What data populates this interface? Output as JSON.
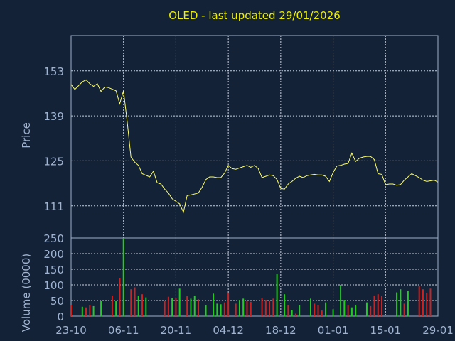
{
  "chart_data": [
    {
      "type": "line",
      "title": "OLED - last updated 29/01/2026",
      "ylabel": "Price",
      "ylim": [
        101,
        164
      ],
      "yticks": [
        111,
        125,
        139,
        153
      ],
      "xticks": [
        {
          "date": "2025-10-23",
          "label": "23-10"
        },
        {
          "date": "2025-11-06",
          "label": "06-11"
        },
        {
          "date": "2025-11-20",
          "label": "20-11"
        },
        {
          "date": "2025-12-04",
          "label": "04-12"
        },
        {
          "date": "2025-12-18",
          "label": "18-12"
        },
        {
          "date": "2026-01-01",
          "label": "01-01"
        },
        {
          "date": "2026-01-15",
          "label": "15-01"
        },
        {
          "date": "2026-01-29",
          "label": "29-01"
        }
      ],
      "grid": true,
      "line_color": "#ffff66",
      "series": [
        {
          "values": [
            [
              "2025-10-23",
              148.8
            ],
            [
              "2025-10-24",
              147.2
            ],
            [
              "2025-10-26",
              149.6
            ],
            [
              "2025-10-27",
              150.2
            ],
            [
              "2025-10-28",
              149.0
            ],
            [
              "2025-10-29",
              148.2
            ],
            [
              "2025-10-30",
              149.0
            ],
            [
              "2025-10-31",
              146.6
            ],
            [
              "2025-11-01",
              148.0
            ],
            [
              "2025-11-02",
              147.8
            ],
            [
              "2025-11-04",
              146.8
            ],
            [
              "2025-11-05",
              142.8
            ],
            [
              "2025-11-06",
              146.8
            ],
            [
              "2025-11-07",
              137.0
            ],
            [
              "2025-11-08",
              126.2
            ],
            [
              "2025-11-09",
              124.6
            ],
            [
              "2025-11-10",
              123.6
            ],
            [
              "2025-11-11",
              121.0
            ],
            [
              "2025-11-13",
              120.0
            ],
            [
              "2025-11-14",
              121.8
            ],
            [
              "2025-11-15",
              118.2
            ],
            [
              "2025-11-16",
              117.8
            ],
            [
              "2025-11-17",
              116.2
            ],
            [
              "2025-11-18",
              115.0
            ],
            [
              "2025-11-19",
              113.2
            ],
            [
              "2025-11-20",
              112.4
            ],
            [
              "2025-11-21",
              111.6
            ],
            [
              "2025-11-22",
              109.0
            ],
            [
              "2025-11-23",
              114.2
            ],
            [
              "2025-11-24",
              114.4
            ],
            [
              "2025-11-26",
              115.0
            ],
            [
              "2025-11-27",
              116.8
            ],
            [
              "2025-11-28",
              119.2
            ],
            [
              "2025-11-29",
              120.0
            ],
            [
              "2025-11-30",
              120.0
            ],
            [
              "2025-12-01",
              119.8
            ],
            [
              "2025-12-02",
              119.8
            ],
            [
              "2025-12-03",
              121.2
            ],
            [
              "2025-12-04",
              123.6
            ],
            [
              "2025-12-05",
              122.6
            ],
            [
              "2025-12-06",
              122.4
            ],
            [
              "2025-12-07",
              122.8
            ],
            [
              "2025-12-08",
              123.2
            ],
            [
              "2025-12-09",
              123.6
            ],
            [
              "2025-12-10",
              123.0
            ],
            [
              "2025-12-11",
              123.6
            ],
            [
              "2025-12-12",
              122.6
            ],
            [
              "2025-12-13",
              119.8
            ],
            [
              "2025-12-15",
              120.6
            ],
            [
              "2025-12-16",
              120.4
            ],
            [
              "2025-12-17",
              119.2
            ],
            [
              "2025-12-18",
              116.4
            ],
            [
              "2025-12-19",
              116.2
            ],
            [
              "2025-12-20",
              117.8
            ],
            [
              "2025-12-21",
              118.6
            ],
            [
              "2025-12-22",
              119.6
            ],
            [
              "2025-12-23",
              120.2
            ],
            [
              "2025-12-24",
              119.8
            ],
            [
              "2025-12-25",
              120.4
            ],
            [
              "2025-12-26",
              120.6
            ],
            [
              "2025-12-27",
              120.8
            ],
            [
              "2025-12-28",
              120.6
            ],
            [
              "2025-12-29",
              120.6
            ],
            [
              "2025-12-30",
              120.2
            ],
            [
              "2025-12-31",
              118.6
            ],
            [
              "2026-01-01",
              121.4
            ],
            [
              "2026-01-02",
              123.4
            ],
            [
              "2026-01-03",
              123.6
            ],
            [
              "2026-01-04",
              124.0
            ],
            [
              "2026-01-05",
              124.2
            ],
            [
              "2026-01-06",
              127.4
            ],
            [
              "2026-01-07",
              124.8
            ],
            [
              "2026-01-08",
              125.8
            ],
            [
              "2026-01-09",
              126.2
            ],
            [
              "2026-01-10",
              126.4
            ],
            [
              "2026-01-11",
              126.4
            ],
            [
              "2026-01-12",
              125.4
            ],
            [
              "2026-01-13",
              121.0
            ],
            [
              "2026-01-14",
              120.8
            ],
            [
              "2026-01-15",
              117.6
            ],
            [
              "2026-01-16",
              117.8
            ],
            [
              "2026-01-17",
              117.8
            ],
            [
              "2026-01-18",
              117.4
            ],
            [
              "2026-01-19",
              117.6
            ],
            [
              "2026-01-20",
              119.0
            ],
            [
              "2026-01-21",
              120.0
            ],
            [
              "2026-01-22",
              121.0
            ],
            [
              "2026-01-23",
              120.4
            ],
            [
              "2026-01-24",
              119.8
            ],
            [
              "2026-01-25",
              119.0
            ],
            [
              "2026-01-26",
              118.6
            ],
            [
              "2026-01-27",
              118.8
            ],
            [
              "2026-01-28",
              119.0
            ],
            [
              "2026-01-29",
              118.4
            ]
          ]
        }
      ]
    },
    {
      "type": "bar",
      "ylabel": "Volume (0000)",
      "ylim": [
        0,
        250
      ],
      "yticks": [
        0,
        50,
        100,
        150,
        200,
        250
      ],
      "grid": true,
      "up_color": "#22cc22",
      "down_color": "#cc2222",
      "series": [
        {
          "values": [
            [
              "2025-10-23",
              36,
              "down"
            ],
            [
              "2025-10-26",
              30,
              "up"
            ],
            [
              "2025-10-27",
              28,
              "down"
            ],
            [
              "2025-10-28",
              34,
              "down"
            ],
            [
              "2025-10-29",
              32,
              "up"
            ],
            [
              "2025-10-31",
              50,
              "up"
            ],
            [
              "2025-11-03",
              66,
              "down"
            ],
            [
              "2025-11-04",
              50,
              "up"
            ],
            [
              "2025-11-05",
              122,
              "down"
            ],
            [
              "2025-11-06",
              250,
              "up"
            ],
            [
              "2025-11-08",
              86,
              "down"
            ],
            [
              "2025-11-09",
              92,
              "down"
            ],
            [
              "2025-11-10",
              66,
              "up"
            ],
            [
              "2025-11-11",
              70,
              "down"
            ],
            [
              "2025-11-12",
              60,
              "up"
            ],
            [
              "2025-11-17",
              50,
              "down"
            ],
            [
              "2025-11-18",
              62,
              "down"
            ],
            [
              "2025-11-19",
              58,
              "up"
            ],
            [
              "2025-11-20",
              58,
              "down"
            ],
            [
              "2025-11-21",
              88,
              "up"
            ],
            [
              "2025-11-23",
              64,
              "down"
            ],
            [
              "2025-11-24",
              56,
              "up"
            ],
            [
              "2025-11-25",
              66,
              "up"
            ],
            [
              "2025-11-26",
              54,
              "down"
            ],
            [
              "2025-11-28",
              34,
              "up"
            ],
            [
              "2025-11-30",
              72,
              "up"
            ],
            [
              "2025-12-01",
              40,
              "up"
            ],
            [
              "2025-12-02",
              38,
              "up"
            ],
            [
              "2025-12-03",
              44,
              "down"
            ],
            [
              "2025-12-04",
              74,
              "down"
            ],
            [
              "2025-12-06",
              40,
              "down"
            ],
            [
              "2025-12-07",
              52,
              "up"
            ],
            [
              "2025-12-08",
              56,
              "up"
            ],
            [
              "2025-12-09",
              48,
              "down"
            ],
            [
              "2025-12-10",
              46,
              "down"
            ],
            [
              "2025-12-13",
              58,
              "down"
            ],
            [
              "2025-12-14",
              52,
              "down"
            ],
            [
              "2025-12-15",
              50,
              "down"
            ],
            [
              "2025-12-16",
              56,
              "down"
            ],
            [
              "2025-12-17",
              134,
              "up"
            ],
            [
              "2025-12-19",
              70,
              "up"
            ],
            [
              "2025-12-20",
              34,
              "down"
            ],
            [
              "2025-12-21",
              20,
              "up"
            ],
            [
              "2025-12-22",
              8,
              "down"
            ],
            [
              "2025-12-23",
              36,
              "up"
            ],
            [
              "2025-12-26",
              56,
              "up"
            ],
            [
              "2025-12-27",
              40,
              "down"
            ],
            [
              "2025-12-28",
              36,
              "down"
            ],
            [
              "2025-12-29",
              18,
              "down"
            ],
            [
              "2025-12-30",
              44,
              "up"
            ],
            [
              "2026-01-01",
              22,
              "up"
            ],
            [
              "2026-01-03",
              100,
              "up"
            ],
            [
              "2026-01-04",
              52,
              "up"
            ],
            [
              "2026-01-05",
              34,
              "down"
            ],
            [
              "2026-01-06",
              28,
              "up"
            ],
            [
              "2026-01-07",
              34,
              "up"
            ],
            [
              "2026-01-10",
              44,
              "up"
            ],
            [
              "2026-01-11",
              32,
              "down"
            ],
            [
              "2026-01-12",
              66,
              "down"
            ],
            [
              "2026-01-13",
              70,
              "down"
            ],
            [
              "2026-01-14",
              64,
              "down"
            ],
            [
              "2026-01-18",
              76,
              "up"
            ],
            [
              "2026-01-19",
              86,
              "up"
            ],
            [
              "2026-01-20",
              40,
              "down"
            ],
            [
              "2026-01-21",
              80,
              "up"
            ],
            [
              "2026-01-24",
              96,
              "down"
            ],
            [
              "2026-01-25",
              86,
              "down"
            ],
            [
              "2026-01-26",
              74,
              "down"
            ],
            [
              "2026-01-27",
              88,
              "down"
            ]
          ]
        }
      ]
    }
  ]
}
